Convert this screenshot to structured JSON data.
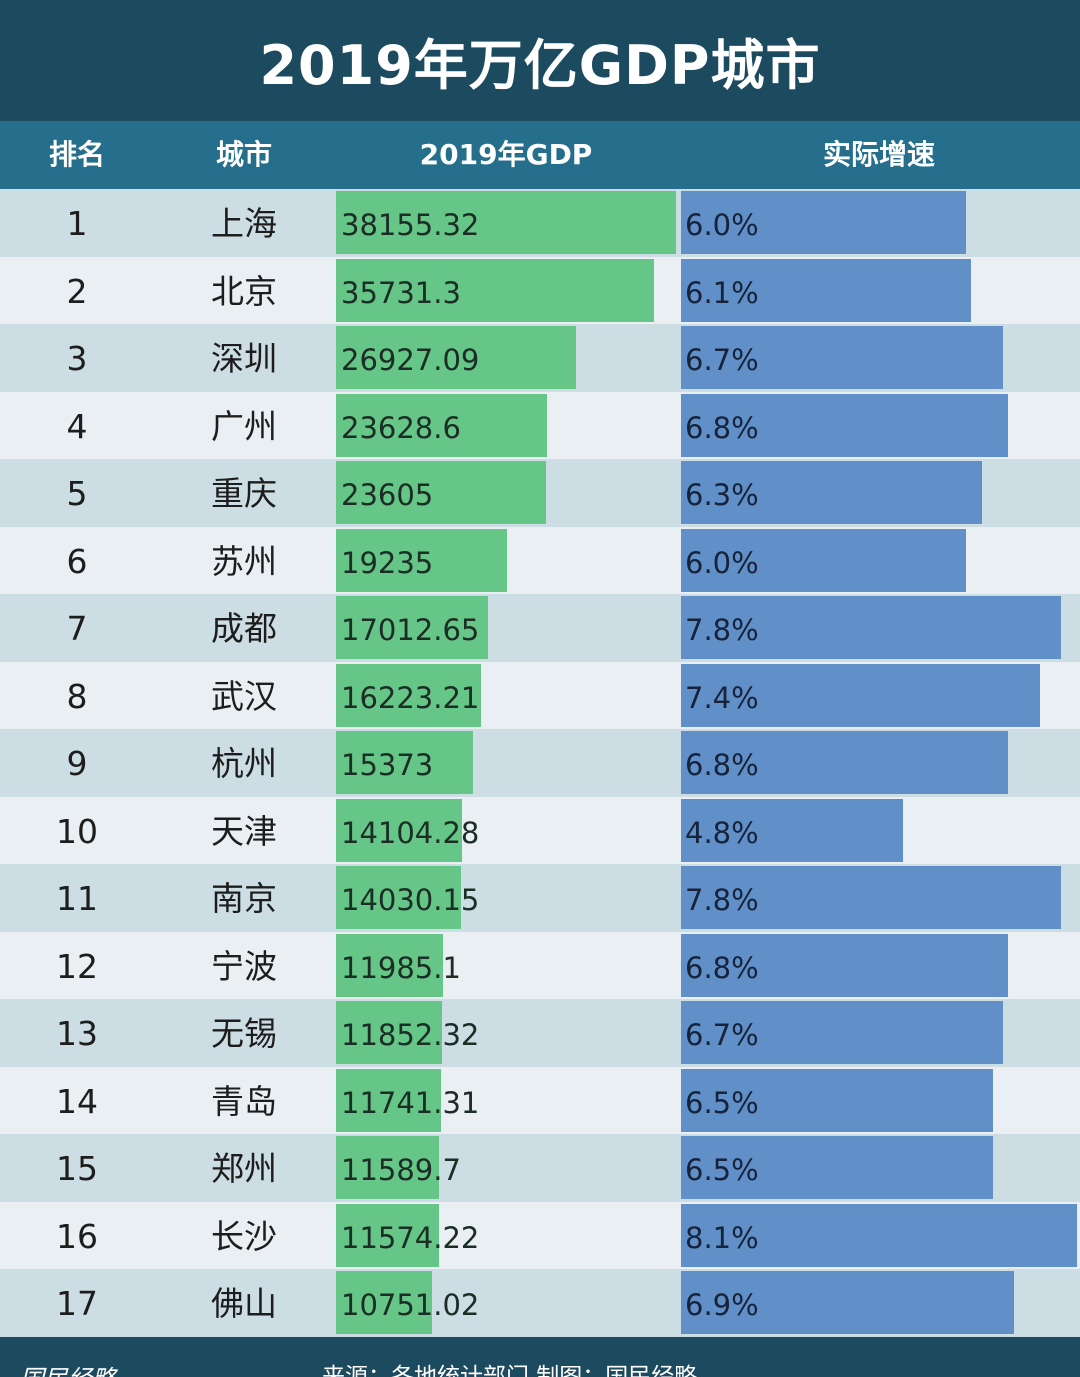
{
  "title": "2019年万亿GDP城市",
  "headers": {
    "rank": "排名",
    "city": "城市",
    "gdp": "2019年GDP",
    "rate": "实际增速"
  },
  "footer": {
    "brand": "国民经略",
    "source": "来源：各地统计部门 制图：国民经略"
  },
  "colors": {
    "title_bg": "#1c4a5f",
    "header_bg": "#256f8c",
    "gdp_bar": "#66c687",
    "rate_bar": "#6190c9",
    "row_shaded": "#cddde4",
    "row_light": "#e9eff2"
  },
  "chart_data": {
    "type": "table",
    "title": "2019年万亿GDP城市",
    "columns": [
      "排名",
      "城市",
      "2019年GDP",
      "实际增速"
    ],
    "rows": [
      {
        "rank": "1",
        "city": "上海",
        "gdp": 38155.32,
        "gdp_label": "38155.32",
        "rate": 6.0,
        "rate_label": "6.0%"
      },
      {
        "rank": "2",
        "city": "北京",
        "gdp": 35731.3,
        "gdp_label": "35731.3",
        "rate": 6.1,
        "rate_label": "6.1%"
      },
      {
        "rank": "3",
        "city": "深圳",
        "gdp": 26927.09,
        "gdp_label": "26927.09",
        "rate": 6.7,
        "rate_label": "6.7%"
      },
      {
        "rank": "4",
        "city": "广州",
        "gdp": 23628.6,
        "gdp_label": "23628.6",
        "rate": 6.8,
        "rate_label": "6.8%"
      },
      {
        "rank": "5",
        "city": "重庆",
        "gdp": 23605,
        "gdp_label": "23605",
        "rate": 6.3,
        "rate_label": "6.3%"
      },
      {
        "rank": "6",
        "city": "苏州",
        "gdp": 19235,
        "gdp_label": "19235",
        "rate": 6.0,
        "rate_label": "6.0%"
      },
      {
        "rank": "7",
        "city": "成都",
        "gdp": 17012.65,
        "gdp_label": "17012.65",
        "rate": 7.8,
        "rate_label": "7.8%"
      },
      {
        "rank": "8",
        "city": "武汉",
        "gdp": 16223.21,
        "gdp_label": "16223.21",
        "rate": 7.4,
        "rate_label": "7.4%"
      },
      {
        "rank": "9",
        "city": "杭州",
        "gdp": 15373,
        "gdp_label": "15373",
        "rate": 6.8,
        "rate_label": "6.8%"
      },
      {
        "rank": "10",
        "city": "天津",
        "gdp": 14104.28,
        "gdp_label": "14104.28",
        "rate": 4.8,
        "rate_label": "4.8%"
      },
      {
        "rank": "11",
        "city": "南京",
        "gdp": 14030.15,
        "gdp_label": "14030.15",
        "rate": 7.8,
        "rate_label": "7.8%"
      },
      {
        "rank": "12",
        "city": "宁波",
        "gdp": 11985.1,
        "gdp_label": "11985.1",
        "rate": 6.8,
        "rate_label": "6.8%"
      },
      {
        "rank": "13",
        "city": "无锡",
        "gdp": 11852.32,
        "gdp_label": "11852.32",
        "rate": 6.7,
        "rate_label": "6.7%"
      },
      {
        "rank": "14",
        "city": "青岛",
        "gdp": 11741.31,
        "gdp_label": "11741.31",
        "rate": 6.5,
        "rate_label": "6.5%"
      },
      {
        "rank": "15",
        "city": "郑州",
        "gdp": 11589.7,
        "gdp_label": "11589.7",
        "rate": 6.5,
        "rate_label": "6.5%"
      },
      {
        "rank": "16",
        "city": "长沙",
        "gdp": 11574.22,
        "gdp_label": "11574.22",
        "rate": 8.1,
        "rate_label": "8.1%"
      },
      {
        "rank": "17",
        "city": "佛山",
        "gdp": 10751.02,
        "gdp_label": "10751.02",
        "rate": 6.9,
        "rate_label": "6.9%"
      }
    ],
    "gdp_axis_max": 38155.32,
    "rate_axis_max": 8.1
  }
}
